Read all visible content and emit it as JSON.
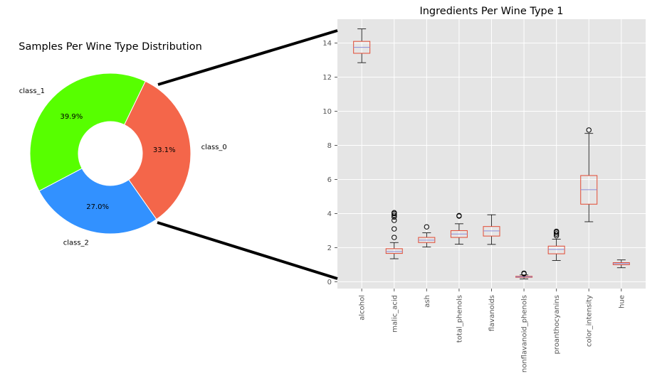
{
  "chart_data": [
    {
      "type": "pie",
      "title": "Samples Per Wine Type Distribution",
      "donut": true,
      "slices": [
        {
          "label": "class_0",
          "value": 33.1,
          "pct_label": "33.1%",
          "color": "#f4664a"
        },
        {
          "label": "class_1",
          "value": 39.9,
          "pct_label": "39.9%",
          "color": "#57ff00"
        },
        {
          "label": "class_2",
          "value": 27.0,
          "pct_label": "27.0%",
          "color": "#3291ff"
        }
      ]
    },
    {
      "type": "box",
      "title": "Ingredients Per Wine Type 1",
      "ylim": [
        -0.4,
        15.4
      ],
      "yticks": [
        0,
        2,
        4,
        6,
        8,
        10,
        12,
        14
      ],
      "grid": true,
      "box_color": "#e24a33",
      "median_color": "#8c8cd8",
      "series": [
        {
          "name": "alcohol",
          "whislo": 12.85,
          "q1": 13.4,
          "med": 13.75,
          "q3": 14.1,
          "whishi": 14.83,
          "fliers": []
        },
        {
          "name": "malic_acid",
          "whislo": 1.35,
          "q1": 1.66,
          "med": 1.77,
          "q3": 1.94,
          "whishi": 2.3,
          "fliers": [
            2.6,
            3.1,
            3.6,
            3.8,
            3.9,
            4.0,
            4.05
          ]
        },
        {
          "name": "ash",
          "whislo": 2.04,
          "q1": 2.3,
          "med": 2.44,
          "q3": 2.6,
          "whishi": 2.87,
          "fliers": [
            3.22
          ]
        },
        {
          "name": "total_phenols",
          "whislo": 2.2,
          "q1": 2.6,
          "med": 2.8,
          "q3": 3.0,
          "whishi": 3.4,
          "fliers": [
            3.85,
            3.88
          ]
        },
        {
          "name": "flavanoids",
          "whislo": 2.19,
          "q1": 2.68,
          "med": 2.98,
          "q3": 3.24,
          "whishi": 3.93,
          "fliers": []
        },
        {
          "name": "nonflavanoid_phenols",
          "whislo": 0.17,
          "q1": 0.26,
          "med": 0.29,
          "q3": 0.32,
          "whishi": 0.4,
          "fliers": [
            0.47,
            0.5
          ]
        },
        {
          "name": "proanthocyanins",
          "whislo": 1.25,
          "q1": 1.64,
          "med": 1.9,
          "q3": 2.09,
          "whishi": 2.5,
          "fliers": [
            2.7,
            2.8,
            2.9,
            2.96
          ]
        },
        {
          "name": "color_intensity",
          "whislo": 3.52,
          "q1": 4.55,
          "med": 5.4,
          "q3": 6.23,
          "whishi": 8.7,
          "fliers": [
            8.9
          ]
        },
        {
          "name": "hue",
          "whislo": 0.82,
          "q1": 1.0,
          "med": 1.07,
          "q3": 1.12,
          "whishi": 1.28,
          "fliers": []
        }
      ]
    }
  ]
}
